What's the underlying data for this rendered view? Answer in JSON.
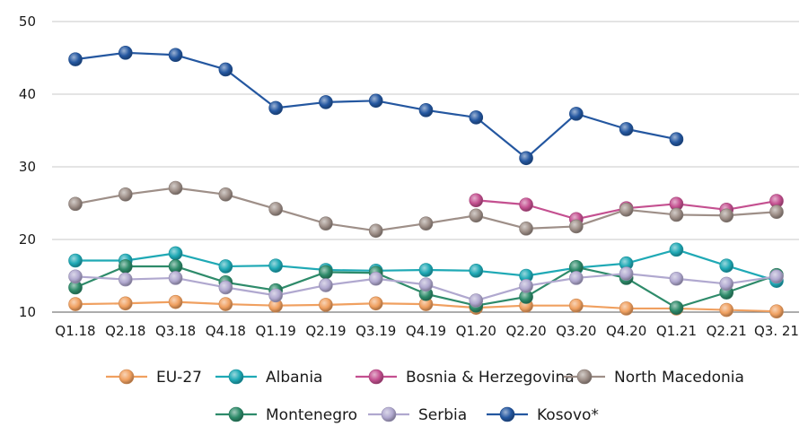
{
  "chart_data": {
    "type": "line",
    "title": "",
    "xlabel": "",
    "ylabel": "",
    "ylim": [
      10,
      50
    ],
    "yticks": [
      10,
      20,
      30,
      40,
      50
    ],
    "grid": "horizontal",
    "legend_position": "bottom",
    "categories": [
      "Q1.18",
      "Q2.18",
      "Q3.18",
      "Q4.18",
      "Q1.19",
      "Q2.19",
      "Q3.19",
      "Q4.19",
      "Q1.20",
      "Q2.20",
      "Q3.20",
      "Q4.20",
      "Q1.21",
      "Q2.21",
      "Q3. 21"
    ],
    "series": [
      {
        "name": "EU-27",
        "color": "#F0A060",
        "values": [
          11.1,
          11.2,
          11.4,
          11.1,
          10.9,
          11.0,
          11.2,
          11.1,
          10.6,
          10.9,
          10.9,
          10.5,
          10.5,
          10.3,
          10.1
        ]
      },
      {
        "name": "Albania",
        "color": "#1FA9B5",
        "values": [
          17.1,
          17.1,
          18.1,
          16.3,
          16.4,
          15.8,
          15.7,
          15.8,
          15.7,
          15.0,
          16.1,
          16.7,
          18.6,
          16.4,
          14.3
        ]
      },
      {
        "name": "Bosnia & Herzegovina",
        "color": "#C45090",
        "values": [
          null,
          null,
          null,
          null,
          null,
          null,
          null,
          null,
          25.4,
          24.8,
          22.8,
          24.3,
          24.9,
          24.1,
          25.3
        ]
      },
      {
        "name": "North Macedonia",
        "color": "#9E8F88",
        "values": [
          24.9,
          26.2,
          27.1,
          26.2,
          24.2,
          22.2,
          21.2,
          22.2,
          23.3,
          21.5,
          21.8,
          24.1,
          23.4,
          23.3,
          23.8
        ]
      },
      {
        "name": "Montenegro",
        "color": "#2E8B6A",
        "values": [
          13.4,
          16.3,
          16.3,
          14.1,
          13.0,
          15.5,
          15.4,
          12.5,
          10.9,
          12.1,
          16.2,
          14.7,
          10.6,
          12.7,
          15.1
        ]
      },
      {
        "name": "Serbia",
        "color": "#B0A8CF",
        "values": [
          14.9,
          14.5,
          14.7,
          13.4,
          12.3,
          13.7,
          14.6,
          13.8,
          11.6,
          13.6,
          14.7,
          15.3,
          14.6,
          13.9,
          14.9
        ]
      },
      {
        "name": "Kosovo*",
        "color": "#2457A0",
        "values": [
          44.8,
          45.7,
          45.4,
          43.4,
          38.1,
          38.9,
          39.1,
          37.8,
          36.8,
          31.2,
          37.3,
          35.2,
          33.8,
          null,
          null
        ]
      }
    ]
  }
}
